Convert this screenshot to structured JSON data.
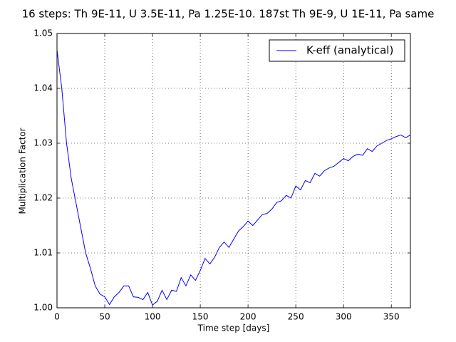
{
  "chart_data": {
    "type": "line",
    "title": "16 steps: Th 9E-11, U 3.5E-11, Pa 1.25E-10. 187st Th 9E-9, U 1E-11, Pa same",
    "x_label": "Time step [days]",
    "y_label": "Multiplication Factor",
    "x": [
      0,
      5,
      10,
      15,
      20,
      25,
      30,
      35,
      40,
      45,
      50,
      55,
      60,
      65,
      70,
      75,
      80,
      85,
      90,
      95,
      100,
      105,
      110,
      115,
      120,
      125,
      130,
      135,
      140,
      145,
      150,
      155,
      160,
      165,
      170,
      175,
      180,
      185,
      190,
      195,
      200,
      205,
      210,
      215,
      220,
      225,
      230,
      235,
      240,
      245,
      250,
      255,
      260,
      265,
      270,
      275,
      280,
      285,
      290,
      295,
      300,
      305,
      310,
      315,
      320,
      325,
      330,
      335,
      340,
      345,
      350,
      355,
      360,
      365,
      370
    ],
    "series": [
      {
        "name": "K-eff (analytical)",
        "color": "#0000ff",
        "values": [
          1.047,
          1.04,
          1.03,
          1.0235,
          1.019,
          1.0145,
          1.01,
          1.0072,
          1.004,
          1.0025,
          1.002,
          1.0006,
          1.002,
          1.0028,
          1.004,
          1.004,
          1.002,
          1.0019,
          1.0015,
          1.0028,
          1.0005,
          1.0012,
          1.0032,
          1.0015,
          1.0032,
          1.003,
          1.0055,
          1.004,
          1.006,
          1.005,
          1.0068,
          1.009,
          1.008,
          1.0092,
          1.011,
          1.012,
          1.011,
          1.0125,
          1.014,
          1.0148,
          1.0158,
          1.015,
          1.016,
          1.017,
          1.0172,
          1.018,
          1.0192,
          1.0195,
          1.0205,
          1.02,
          1.0222,
          1.0215,
          1.0232,
          1.0228,
          1.0245,
          1.024,
          1.025,
          1.0255,
          1.0258,
          1.0265,
          1.0272,
          1.0268,
          1.0276,
          1.028,
          1.0278,
          1.029,
          1.0285,
          1.0295,
          1.03,
          1.0305,
          1.0308,
          1.0312,
          1.0315,
          1.031,
          1.0315
        ]
      }
    ],
    "xlim": [
      0,
      370
    ],
    "ylim": [
      1,
      1.05
    ],
    "xticks": [
      0,
      50,
      100,
      150,
      200,
      250,
      300,
      350
    ],
    "yticks": [
      {
        "value": 1,
        "label": "1.00"
      },
      {
        "value": 1.01,
        "label": "1.01"
      },
      {
        "value": 1.02,
        "label": "1.02"
      },
      {
        "value": 1.03,
        "label": "1.03"
      },
      {
        "value": 1.04,
        "label": "1.04"
      },
      {
        "value": 1.05,
        "label": "1.05"
      }
    ],
    "grid": true,
    "legend": "upper right"
  }
}
